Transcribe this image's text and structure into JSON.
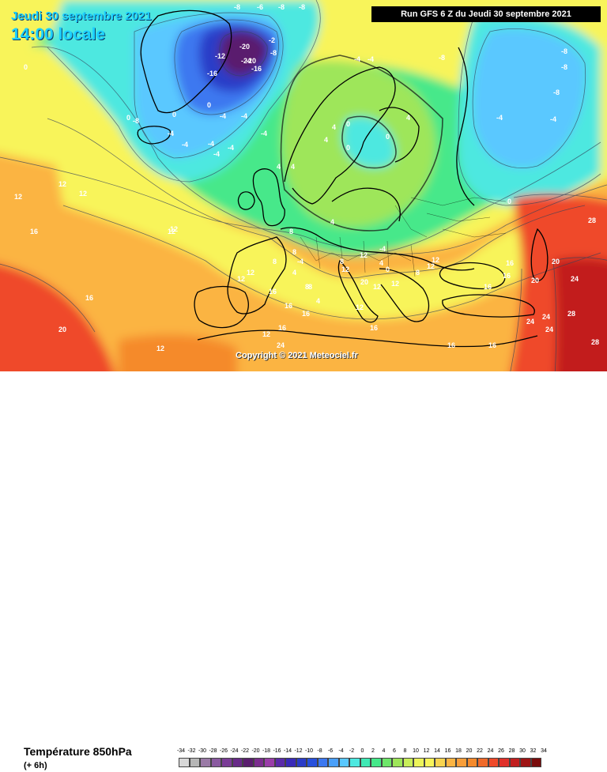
{
  "header": {
    "date": "Jeudi 30 septembre 2021",
    "time": "14:00 locale",
    "run": "Run GFS 6 Z du Jeudi 30 septembre 2021"
  },
  "copyright": "Copyright © 2021 Meteociel.fr",
  "footer": {
    "parameter": "Température 850hPa",
    "lead": "(+ 6h)"
  },
  "colors": {
    "very_cold": "#5a1e6e",
    "cold_dark_blue": "#2b3cc8",
    "blue": "#3c78f0",
    "light_blue": "#5ac8ff",
    "cyan": "#4de8e0",
    "green": "#46e88a",
    "yellow_green": "#9ee65a",
    "yellow": "#f8f45a",
    "orange": "#fbb443",
    "dark_orange": "#f58a2c",
    "red": "#ef4a2a",
    "dark_red": "#c21f1f"
  },
  "scale": [
    {
      "v": "-34",
      "c": "#d8d8d8"
    },
    {
      "v": "-32",
      "c": "#b6b6b6"
    },
    {
      "v": "-30",
      "c": "#9a7aa6"
    },
    {
      "v": "-28",
      "c": "#8a5aa0"
    },
    {
      "v": "-26",
      "c": "#7a3c96"
    },
    {
      "v": "-24",
      "c": "#682a88"
    },
    {
      "v": "-22",
      "c": "#5a1e6e"
    },
    {
      "v": "-20",
      "c": "#7b2d8e"
    },
    {
      "v": "-18",
      "c": "#9a3da8"
    },
    {
      "v": "-16",
      "c": "#5b2aa8"
    },
    {
      "v": "-14",
      "c": "#3a2ab8"
    },
    {
      "v": "-12",
      "c": "#2b3cc8"
    },
    {
      "v": "-10",
      "c": "#2850dc"
    },
    {
      "v": "-8",
      "c": "#3c78f0"
    },
    {
      "v": "-6",
      "c": "#4aa0fa"
    },
    {
      "v": "-4",
      "c": "#5ac8ff"
    },
    {
      "v": "-2",
      "c": "#4de8e0"
    },
    {
      "v": "0",
      "c": "#40e8b4"
    },
    {
      "v": "2",
      "c": "#46e88a"
    },
    {
      "v": "4",
      "c": "#6ee66a"
    },
    {
      "v": "6",
      "c": "#9ee65a"
    },
    {
      "v": "8",
      "c": "#c8ee5a"
    },
    {
      "v": "10",
      "c": "#ecf45a"
    },
    {
      "v": "12",
      "c": "#f8f45a"
    },
    {
      "v": "14",
      "c": "#f8d450"
    },
    {
      "v": "16",
      "c": "#fbb443"
    },
    {
      "v": "18",
      "c": "#f89e3a"
    },
    {
      "v": "20",
      "c": "#f58a2c"
    },
    {
      "v": "22",
      "c": "#f06a2a"
    },
    {
      "v": "24",
      "c": "#ef4a2a"
    },
    {
      "v": "26",
      "c": "#e0302a"
    },
    {
      "v": "28",
      "c": "#c21f1f"
    },
    {
      "v": "30",
      "c": "#9e1414"
    },
    {
      "v": "32",
      "c": "#7a0c0c"
    },
    {
      "v": "34",
      "c": "#200606"
    }
  ],
  "isotherm_labels": [
    {
      "t": "-8",
      "c": "#fff"
    },
    {
      "t": "-6",
      "c": "#fff"
    },
    {
      "t": "-8",
      "c": "#fff"
    },
    {
      "t": "-8",
      "c": "#fff"
    },
    {
      "t": "-12",
      "c": "#fff"
    },
    {
      "t": "-2",
      "c": "#fff"
    },
    {
      "t": "-20",
      "c": "#fff"
    },
    {
      "t": "-24",
      "c": "#fff"
    },
    {
      "t": "-20",
      "c": "#fff"
    },
    {
      "t": "-16",
      "c": "#fff"
    },
    {
      "t": "-16",
      "c": "#fff"
    },
    {
      "t": "-8",
      "c": "#fff"
    },
    {
      "t": "-4",
      "c": "#fff"
    },
    {
      "t": "-8",
      "c": "#fff"
    },
    {
      "t": "-4",
      "c": "#fff"
    },
    {
      "t": "-4",
      "c": "#fff"
    },
    {
      "t": "-4",
      "c": "#fff"
    },
    {
      "t": "-4",
      "c": "#fff"
    },
    {
      "t": "-4",
      "c": "#fff"
    },
    {
      "t": "-4",
      "c": "#fff"
    },
    {
      "t": "-4",
      "c": "#fff"
    },
    {
      "t": "0",
      "c": "#fff"
    },
    {
      "t": "0",
      "c": "#fff"
    },
    {
      "t": "0",
      "c": "#fff"
    },
    {
      "t": "0",
      "c": "#fff"
    },
    {
      "t": "-4",
      "c": "#fff"
    },
    {
      "t": "-4",
      "c": "#fff"
    },
    {
      "t": "-8",
      "c": "#fff"
    },
    {
      "t": "-8",
      "c": "#fff"
    },
    {
      "t": "-8",
      "c": "#fff"
    },
    {
      "t": "-8",
      "c": "#fff"
    },
    {
      "t": "-4",
      "c": "#fff"
    },
    {
      "t": "-4",
      "c": "#fff"
    },
    {
      "t": "0",
      "c": "#fff"
    },
    {
      "t": "4",
      "c": "#fff"
    },
    {
      "t": "4",
      "c": "#fff"
    },
    {
      "t": "0",
      "c": "#fff"
    },
    {
      "t": "0",
      "c": "#fff"
    },
    {
      "t": "4",
      "c": "#fff"
    },
    {
      "t": "4",
      "c": "#fff"
    },
    {
      "t": "4",
      "c": "#fff"
    },
    {
      "t": "0",
      "c": "#fff"
    },
    {
      "t": "4",
      "c": "#fff"
    },
    {
      "t": "8",
      "c": "#fff"
    },
    {
      "t": "8",
      "c": "#fff"
    },
    {
      "t": "8",
      "c": "#fff"
    },
    {
      "t": "4",
      "c": "#fff"
    },
    {
      "t": "8",
      "c": "#fff"
    },
    {
      "t": "12",
      "c": "#fff"
    },
    {
      "t": "12",
      "c": "#fff"
    },
    {
      "t": "12",
      "c": "#fff"
    },
    {
      "t": "12",
      "c": "#fff"
    },
    {
      "t": "8",
      "c": "#fff"
    },
    {
      "t": "12",
      "c": "#fff"
    },
    {
      "t": "12",
      "c": "#fff"
    },
    {
      "t": "12",
      "c": "#fff"
    },
    {
      "t": "16",
      "c": "#fff"
    },
    {
      "t": "16",
      "c": "#fff"
    },
    {
      "t": "16",
      "c": "#fff"
    },
    {
      "t": "16",
      "c": "#fff"
    },
    {
      "t": "16",
      "c": "#fff"
    },
    {
      "t": "20",
      "c": "#fff"
    },
    {
      "t": "20",
      "c": "#fff"
    },
    {
      "t": "20",
      "c": "#fff"
    },
    {
      "t": "24",
      "c": "#fff"
    },
    {
      "t": "24",
      "c": "#fff"
    },
    {
      "t": "24",
      "c": "#fff"
    },
    {
      "t": "28",
      "c": "#fff"
    },
    {
      "t": "28",
      "c": "#fff"
    },
    {
      "t": "28",
      "c": "#fff"
    },
    {
      "t": "24",
      "c": "#fff"
    },
    {
      "t": "16",
      "c": "#fff"
    },
    {
      "t": "16",
      "c": "#fff"
    },
    {
      "t": "16",
      "c": "#fff"
    },
    {
      "t": "16",
      "c": "#fff"
    },
    {
      "t": "12",
      "c": "#fff"
    },
    {
      "t": "12",
      "c": "#fff"
    },
    {
      "t": "12",
      "c": "#fff"
    },
    {
      "t": "12",
      "c": "#fff"
    },
    {
      "t": "16",
      "c": "#fff"
    },
    {
      "t": "16",
      "c": "#fff"
    },
    {
      "t": "16",
      "c": "#fff"
    },
    {
      "t": "20",
      "c": "#fff"
    },
    {
      "t": "24",
      "c": "#fff"
    },
    {
      "t": "12",
      "c": "#fff"
    },
    {
      "t": "12",
      "c": "#fff"
    },
    {
      "t": "12",
      "c": "#fff"
    },
    {
      "t": "8",
      "c": "#fff"
    },
    {
      "t": "4",
      "c": "#fff"
    },
    {
      "t": "4",
      "c": "#fff"
    },
    {
      "t": "-4",
      "c": "#fff"
    },
    {
      "t": "-4",
      "c": "#fff"
    },
    {
      "t": "0",
      "c": "#fff"
    },
    {
      "t": "8",
      "c": "#fff"
    },
    {
      "t": "12",
      "c": "#fff"
    },
    {
      "t": "12",
      "c": "#fff"
    }
  ]
}
